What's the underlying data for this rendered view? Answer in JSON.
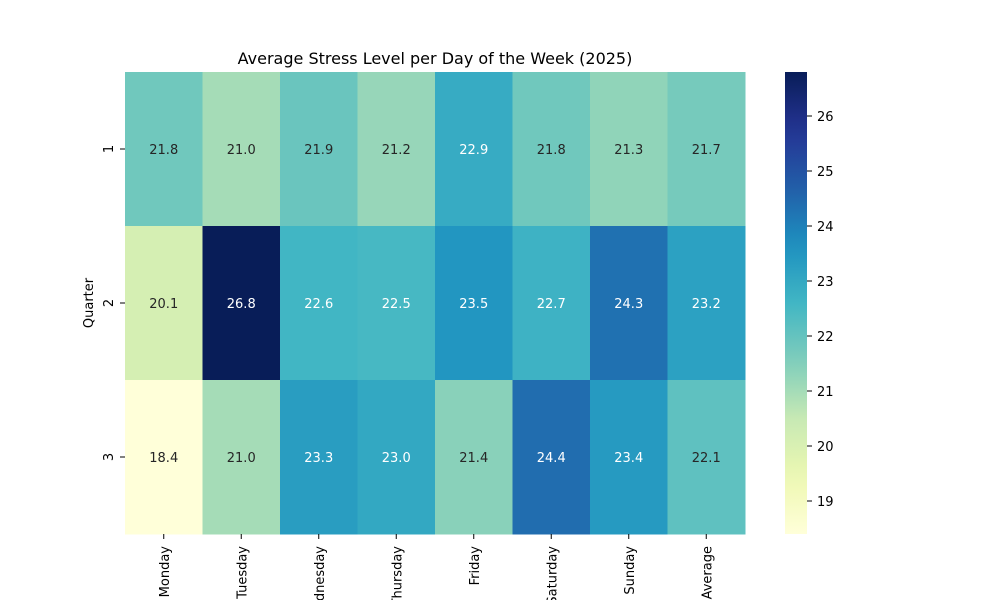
{
  "chart_data": {
    "type": "heatmap",
    "title": "Average Stress Level per Day of the Week (2025)",
    "xlabel": "",
    "ylabel": "Quarter",
    "x_categories": [
      "Monday",
      "Tuesday",
      "Wednesday",
      "Thursday",
      "Friday",
      "Saturday",
      "Sunday",
      "Average"
    ],
    "y_categories": [
      "1",
      "2",
      "3"
    ],
    "values": [
      [
        21.8,
        21.0,
        21.9,
        21.2,
        22.9,
        21.8,
        21.3,
        21.7
      ],
      [
        20.1,
        26.8,
        22.6,
        22.5,
        23.5,
        22.7,
        24.3,
        23.2
      ],
      [
        18.4,
        21.0,
        23.3,
        23.0,
        21.4,
        24.4,
        23.4,
        22.1
      ]
    ],
    "colormap": "YlGnBu",
    "colorbar": {
      "min": 18.4,
      "max": 26.8,
      "ticks": [
        19,
        20,
        21,
        22,
        23,
        24,
        25,
        26
      ]
    },
    "grid": false,
    "annotations": true
  }
}
